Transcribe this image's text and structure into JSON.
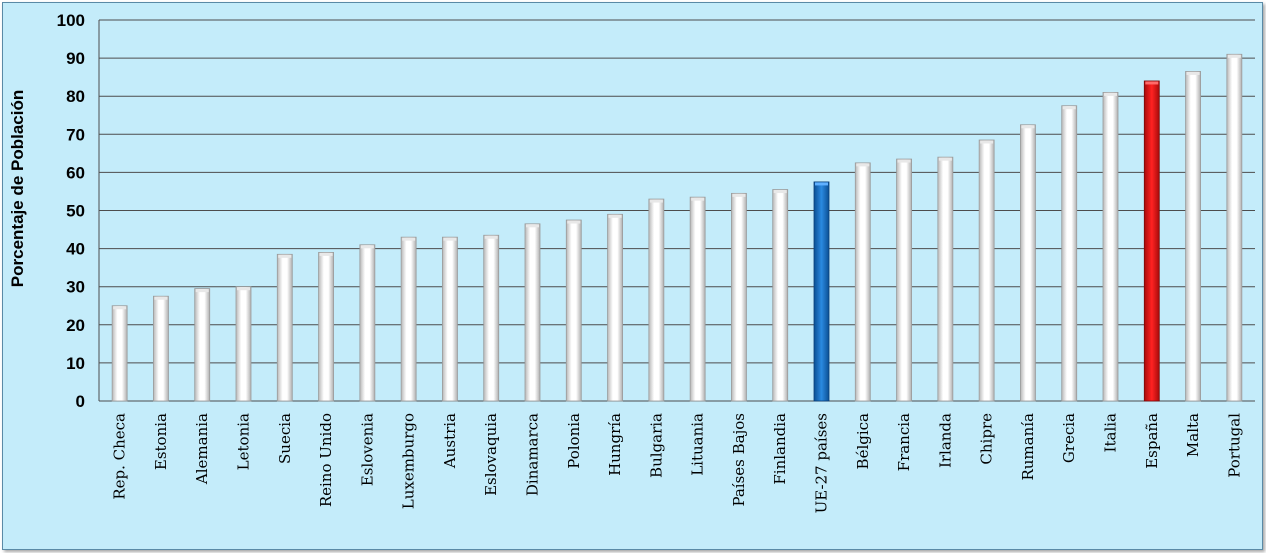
{
  "chart_data": {
    "type": "bar",
    "title": "",
    "xlabel": "",
    "ylabel": "Porcentaje de Población",
    "ylim": [
      0,
      100
    ],
    "yticks": [
      0,
      10,
      20,
      30,
      40,
      50,
      60,
      70,
      80,
      90,
      100
    ],
    "grid": true,
    "categories": [
      "Rep. Checa",
      "Estonia",
      "Alemania",
      "Letonia",
      "Suecia",
      "Reino Unido",
      "Eslovenia",
      "Luxemburgo",
      "Austria",
      "Eslovaquia",
      "Dinamarca",
      "Polonia",
      "Hungría",
      "Bulgaria",
      "Lituania",
      "Países Bajos",
      "Finlandia",
      "UE-27 países",
      "Bélgica",
      "Francia",
      "Irlanda",
      "Chipre",
      "Rumanía",
      "Grecia",
      "Italia",
      "España",
      "Malta",
      "Portugal"
    ],
    "values": [
      25,
      27.5,
      29.5,
      30,
      38.5,
      39,
      41,
      43,
      43,
      43.5,
      46.5,
      47.5,
      49,
      53,
      53.5,
      54.5,
      55.5,
      57.5,
      62.5,
      63.5,
      64,
      68.5,
      72.5,
      77.5,
      81,
      84,
      86.5,
      91
    ],
    "highlight": {
      "UE-27 países": "#1a73c7",
      "España": "#e01212"
    },
    "colors": {
      "default_bar": "#ffffff",
      "background": "#c4ecfa",
      "grid": "#4d4d4d"
    }
  }
}
